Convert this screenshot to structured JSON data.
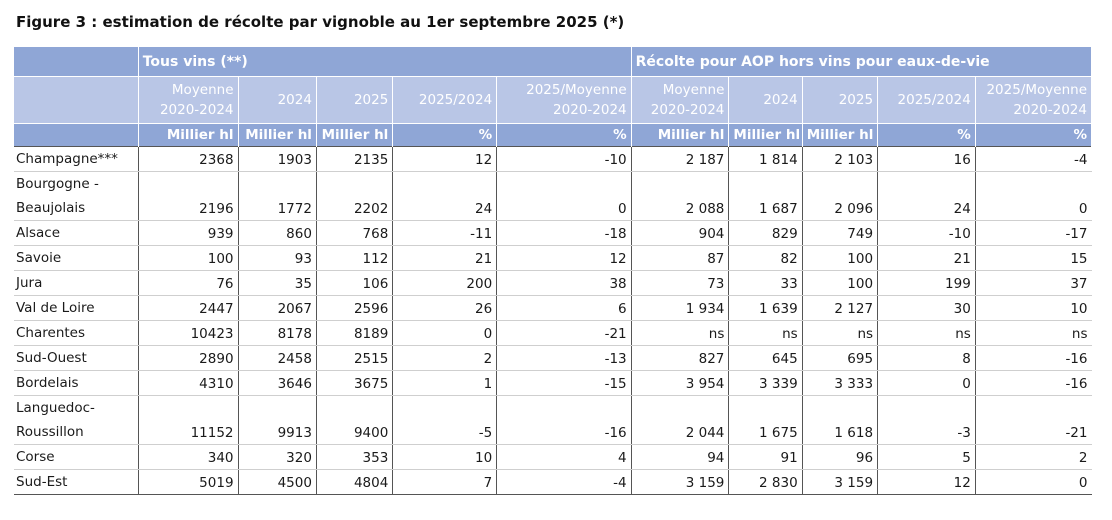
{
  "title": "Figure 3 : estimation de récolte par vignoble au 1er septembre 2025 (*)",
  "chart_data": {
    "type": "table",
    "group_headers": [
      "Tous vins (**)",
      "Récolte pour AOP hors vins pour eaux-de-vie"
    ],
    "columns": [
      {
        "line1": "Moyenne",
        "line2": "2020-2024",
        "unit": "Millier hl"
      },
      {
        "line1": "",
        "line2": "2024",
        "unit": "Millier hl"
      },
      {
        "line1": "",
        "line2": "2025",
        "unit": "Millier hl"
      },
      {
        "line1": "",
        "line2": "2025/2024",
        "unit": "%"
      },
      {
        "line1": "2025/Moyenne",
        "line2": "2020-2024",
        "unit": "%"
      },
      {
        "line1": "Moyenne",
        "line2": "2020-2024",
        "unit": "Millier hl"
      },
      {
        "line1": "",
        "line2": "2024",
        "unit": "Millier hl"
      },
      {
        "line1": "",
        "line2": "2025",
        "unit": "Millier hl"
      },
      {
        "line1": "",
        "line2": "2025/2024",
        "unit": "%"
      },
      {
        "line1": "2025/Moyenne",
        "line2": "2020-2024",
        "unit": "%"
      }
    ],
    "rows": [
      {
        "name": "Champagne***",
        "values": [
          "2368",
          "1903",
          "2135",
          "12",
          "-10",
          "2 187",
          "1 814",
          "2 103",
          "16",
          "-4"
        ]
      },
      {
        "name": "Bourgogne - Beaujolais",
        "values": [
          "2196",
          "1772",
          "2202",
          "24",
          "0",
          "2 088",
          "1 687",
          "2 096",
          "24",
          "0"
        ]
      },
      {
        "name": "Alsace",
        "values": [
          "939",
          "860",
          "768",
          "-11",
          "-18",
          "904",
          "829",
          "749",
          "-10",
          "-17"
        ]
      },
      {
        "name": "Savoie",
        "values": [
          "100",
          "93",
          "112",
          "21",
          "12",
          "87",
          "82",
          "100",
          "21",
          "15"
        ]
      },
      {
        "name": "Jura",
        "values": [
          "76",
          "35",
          "106",
          "200",
          "38",
          "73",
          "33",
          "100",
          "199",
          "37"
        ]
      },
      {
        "name": "Val de Loire",
        "values": [
          "2447",
          "2067",
          "2596",
          "26",
          "6",
          "1 934",
          "1 639",
          "2 127",
          "30",
          "10"
        ]
      },
      {
        "name": "Charentes",
        "values": [
          "10423",
          "8178",
          "8189",
          "0",
          "-21",
          "ns",
          "ns",
          "ns",
          "ns",
          "ns"
        ]
      },
      {
        "name": "Sud-Ouest",
        "values": [
          "2890",
          "2458",
          "2515",
          "2",
          "-13",
          "827",
          "645",
          "695",
          "8",
          "-16"
        ]
      },
      {
        "name": "Bordelais",
        "values": [
          "4310",
          "3646",
          "3675",
          "1",
          "-15",
          "3 954",
          "3 339",
          "3 333",
          "0",
          "-16"
        ]
      },
      {
        "name": "Languedoc- Roussillon",
        "values": [
          "11152",
          "9913",
          "9400",
          "-5",
          "-16",
          "2 044",
          "1 675",
          "1 618",
          "-3",
          "-21"
        ]
      },
      {
        "name": "Corse",
        "values": [
          "340",
          "320",
          "353",
          "10",
          "4",
          "94",
          "91",
          "96",
          "5",
          "2"
        ]
      },
      {
        "name": "Sud-Est",
        "values": [
          "5019",
          "4500",
          "4804",
          "7",
          "-4",
          "3 159",
          "2 830",
          "3 159",
          "12",
          "0"
        ]
      }
    ]
  }
}
